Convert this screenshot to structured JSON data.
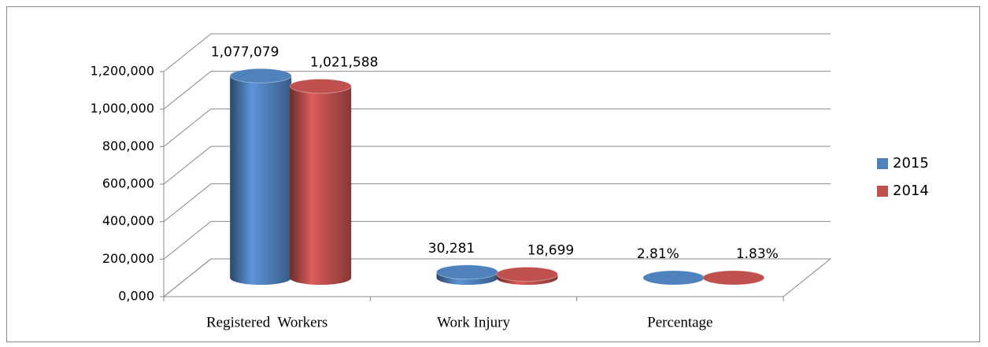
{
  "chart_data": {
    "type": "bar3d",
    "categories": [
      "Registered  Workers",
      "Work Injury",
      "Percentage"
    ],
    "series": [
      {
        "name": "2015",
        "color": "#4f81bd",
        "values": [
          1077079,
          30281,
          2.81
        ],
        "value_labels": [
          "1,077,079",
          "30,281",
          "2.81%"
        ]
      },
      {
        "name": "2014",
        "color": "#c0504d",
        "values": [
          1021588,
          18699,
          1.83
        ],
        "value_labels": [
          "1,021,588",
          "18,699",
          "1.83%"
        ]
      }
    ],
    "ylim": [
      0,
      1200000
    ],
    "yticks": [
      {
        "value": 0,
        "label": "0,000"
      },
      {
        "value": 200000,
        "label": "200,000"
      },
      {
        "value": 400000,
        "label": "400,000"
      },
      {
        "value": 600000,
        "label": "600,000"
      },
      {
        "value": 800000,
        "label": "800,000"
      },
      {
        "value": 1000000,
        "label": "1,000,000"
      },
      {
        "value": 1200000,
        "label": "1,200,000"
      }
    ],
    "grid": true,
    "legend": "right"
  }
}
